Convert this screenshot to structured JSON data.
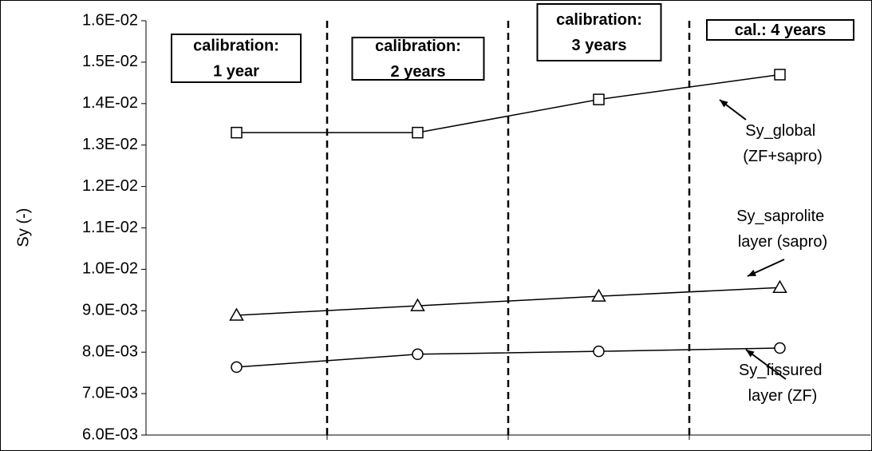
{
  "chart_data": {
    "type": "line",
    "ylabel": "Sy (-)",
    "categories": [
      null,
      null,
      null,
      null
    ],
    "ylim": [
      0.006,
      0.016
    ],
    "yticks": [
      {
        "value": 0.006,
        "label": "6.0E-03"
      },
      {
        "value": 0.007,
        "label": "7.0E-03"
      },
      {
        "value": 0.008,
        "label": "8.0E-03"
      },
      {
        "value": 0.009,
        "label": "9.0E-03"
      },
      {
        "value": 0.01,
        "label": "1.0E-02"
      },
      {
        "value": 0.011,
        "label": "1.1E-02"
      },
      {
        "value": 0.012,
        "label": "1.2E-02"
      },
      {
        "value": 0.013,
        "label": "1.3E-02"
      },
      {
        "value": 0.014,
        "label": "1.4E-02"
      },
      {
        "value": 0.015,
        "label": "1.5E-02"
      },
      {
        "value": 0.016,
        "label": "1.6E-02"
      }
    ],
    "series": [
      {
        "name": "Sy_global (ZF+sapro)",
        "color": "#000000",
        "marker": "square",
        "values": [
          0.0133,
          0.0133,
          0.0141,
          0.0147
        ]
      },
      {
        "name": "Sy_saprolite layer (sapro)",
        "color": "#000000",
        "marker": "triangle",
        "values": [
          0.00889,
          0.00912,
          0.00935,
          0.00956
        ]
      },
      {
        "name": "Sy_fissured layer (ZF)",
        "color": "#000000",
        "marker": "circle",
        "values": [
          0.00764,
          0.00795,
          0.00802,
          0.0081
        ]
      }
    ],
    "annotations": [
      {
        "lines": [
          "calibration:",
          "1 year"
        ]
      },
      {
        "lines": [
          "calibration:",
          "2 years"
        ]
      },
      {
        "lines": [
          "calibration:",
          "3 years"
        ]
      },
      {
        "lines": [
          "cal.: 4 years"
        ]
      }
    ]
  }
}
